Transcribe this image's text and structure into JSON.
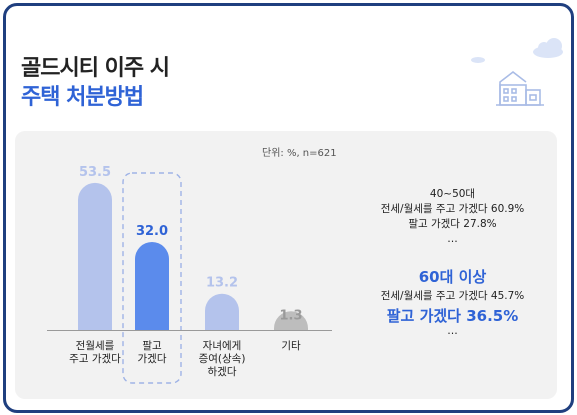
{
  "title_line1": "골드시티 이주 시",
  "title_line2": "주택 처분방법",
  "unit_note": "단위: %, n=621",
  "chart_data": {
    "type": "bar",
    "title": "골드시티 이주 시 주택 처분방법",
    "categories": [
      [
        "전월세를",
        "주고 가겠다"
      ],
      [
        "팔고",
        "가겠다"
      ],
      [
        "자녀에게",
        "증여(상속)",
        "하겠다"
      ],
      [
        "기타"
      ]
    ],
    "values": [
      53.5,
      32.0,
      13.2,
      1.3
    ],
    "value_labels": [
      "53.5",
      "32.0",
      "13.2",
      "1.3"
    ],
    "bar_colors": [
      "#b4c3ec",
      "#5b8bec",
      "#b4c3ec",
      "#bdbdbd"
    ],
    "label_colors": [
      "#b4c3ec",
      "#2f63d6",
      "#b4c3ec",
      "#9a9a9a"
    ],
    "highlight_index": 1,
    "ylim": [
      0,
      60
    ],
    "xlabel": "",
    "ylabel": "",
    "grid": false
  },
  "annotations": {
    "group1_lines": [
      "40~50대",
      "전세/월세를 주고 가겠다 60.9%",
      "팔고 가겠다 27.8%",
      "…"
    ],
    "group2_heading": "60대 이상",
    "group2_line": "전세/월세를 주고 가겠다 45.7%",
    "group2_bold": "팔고 가겠다 36.5%",
    "group2_more": "…"
  },
  "colors": {
    "frame": "#1f3f7f",
    "accent": "#2f63d6",
    "panel": "#f2f2f2"
  },
  "icons": [
    "building-icon",
    "cloud-icon"
  ]
}
